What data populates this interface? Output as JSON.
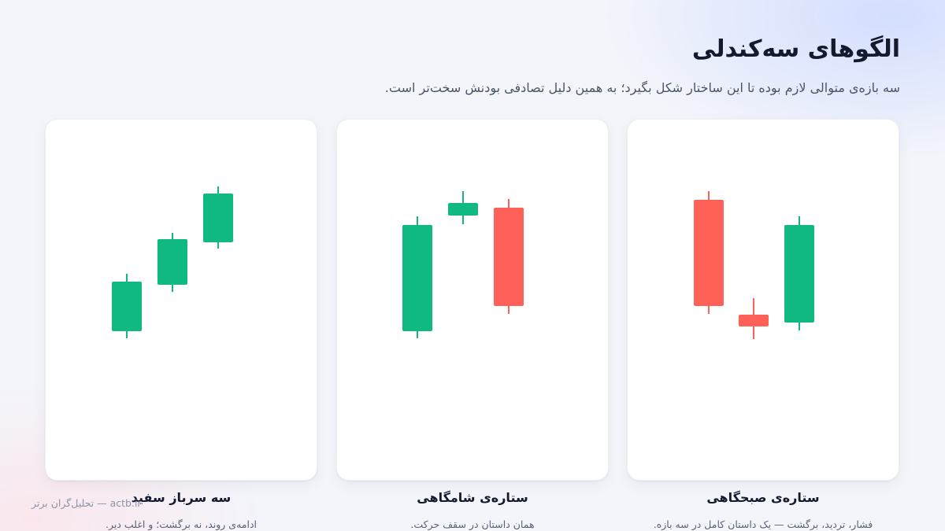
{
  "header": {
    "title": "الگوهای سه‌کندلی",
    "subtitle": "سه بازه‌ی متوالی لازم بوده تا این ساختار شکل بگیرد؛ به همین دلیل تصادفی بودنش سخت‌تر است."
  },
  "cards": [
    {
      "title": "ستاره‌ی صبحگاهی",
      "description": "فشار، تردید، برگشت — یک داستان کامل در سه بازه.",
      "candles": [
        {
          "direction": "bearish"
        },
        {
          "direction": "bearish"
        },
        {
          "direction": "bullish"
        }
      ]
    },
    {
      "title": "ستاره‌ی شامگاهی",
      "description": "همان داستان در سقف حرکت.",
      "candles": [
        {
          "direction": "bullish"
        },
        {
          "direction": "bullish"
        },
        {
          "direction": "bearish"
        }
      ]
    },
    {
      "title": "سه سرباز سفید",
      "description": "ادامه‌ی روند، نه برگشت؛ و اغلب دیر.",
      "candles": [
        {
          "direction": "bullish"
        },
        {
          "direction": "bullish"
        },
        {
          "direction": "bullish"
        }
      ]
    }
  ],
  "colors": {
    "bullish": "#10b981",
    "bearish": "#ff6159"
  },
  "footer": {
    "text": "actb.ir — تحلیل‌گران برتر"
  }
}
